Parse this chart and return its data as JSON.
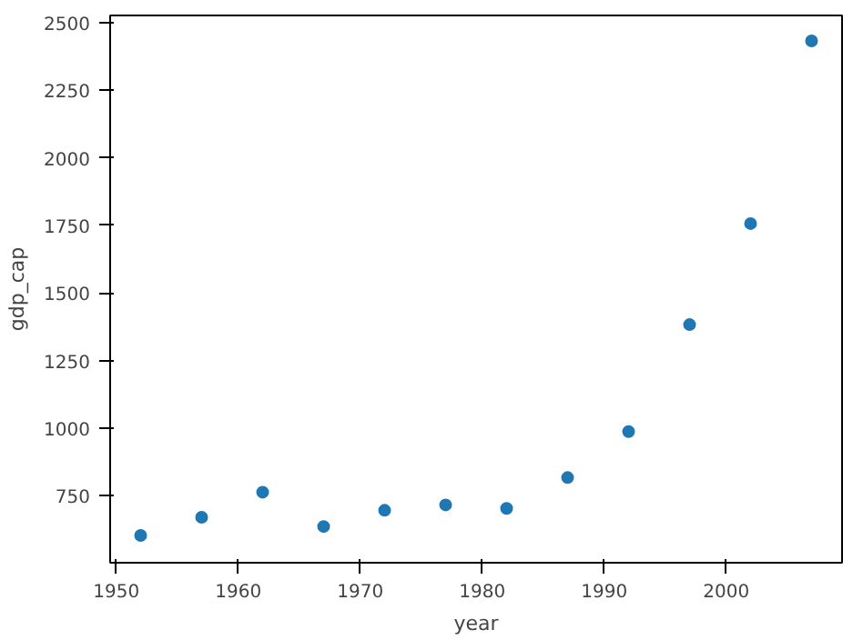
{
  "chart_data": {
    "type": "scatter",
    "xlabel": "year",
    "ylabel": "gdp_cap",
    "x": [
      1952,
      1957,
      1962,
      1967,
      1972,
      1977,
      1982,
      1987,
      1992,
      1997,
      2002,
      2007
    ],
    "series": [
      {
        "color": "#1f77b4",
        "values": [
          603,
          670,
          763,
          636,
          696,
          716,
          703,
          817,
          987,
          1383,
          1757,
          2433
        ]
      }
    ],
    "xlim": [
      1949.5,
      2009.5
    ],
    "xticks": [
      1950,
      1960,
      1970,
      1980,
      1990,
      2000
    ],
    "ylim": [
      502,
      2527
    ],
    "yticks": [
      750,
      1000,
      1250,
      1500,
      1750,
      2000,
      2250,
      2500
    ],
    "grid": false,
    "marker": "circle"
  }
}
